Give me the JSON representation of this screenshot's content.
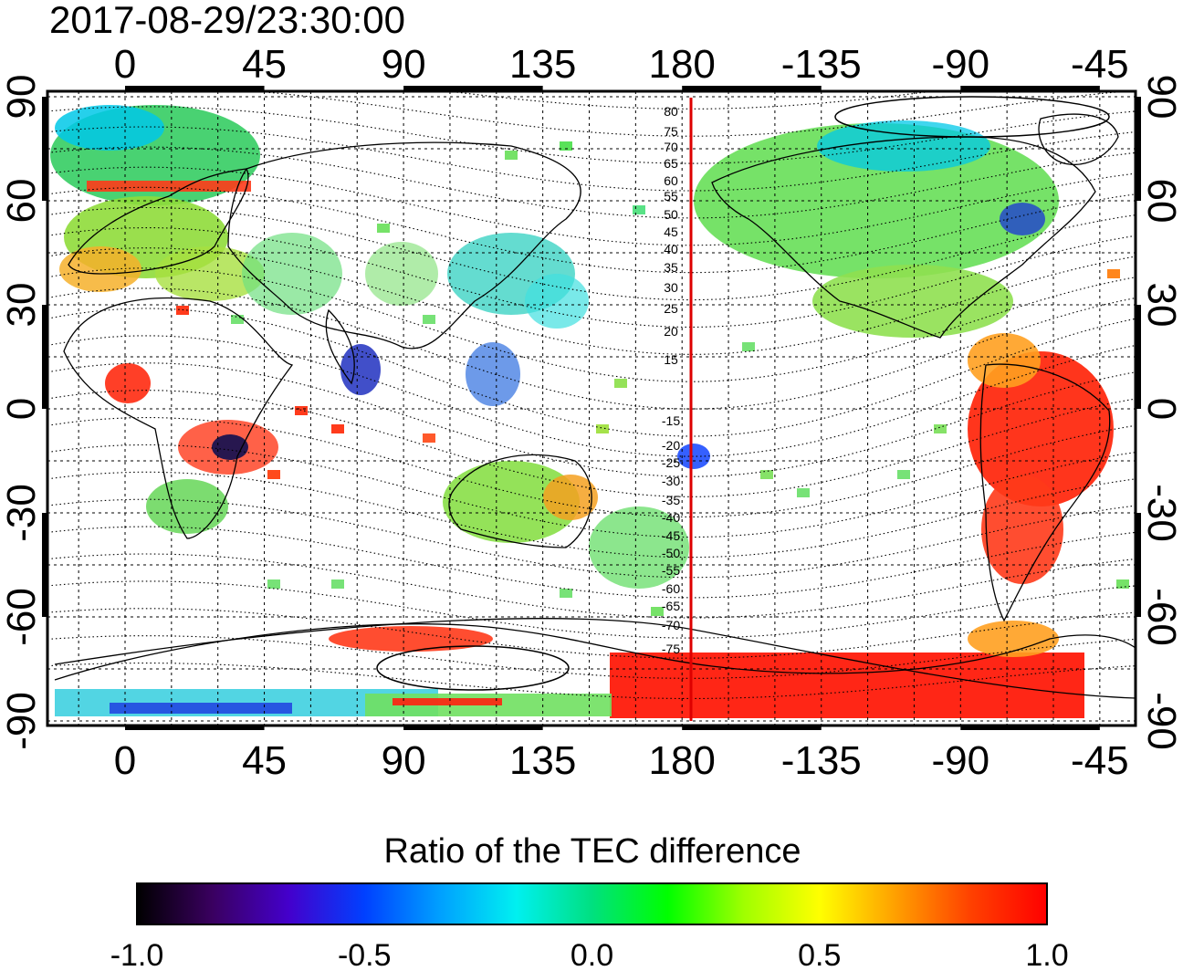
{
  "timestamp": "2017-08-29/23:30:00",
  "colorbar": {
    "title": "Ratio of the TEC difference",
    "ticks": [
      "-1.0",
      "-0.5",
      "0.0",
      "0.5",
      "1.0"
    ],
    "stops": [
      "#000000",
      "#3a0060",
      "#4400cc",
      "#0040ff",
      "#00a0ff",
      "#00f0f0",
      "#00e080",
      "#00ff00",
      "#a0ff00",
      "#ffff00",
      "#ffa000",
      "#ff4000",
      "#ff0000"
    ]
  },
  "map": {
    "top_lon_ticks": [
      "0",
      "45",
      "90",
      "135",
      "180",
      "-135",
      "-90",
      "-45"
    ],
    "bottom_lon_ticks": [
      "0",
      "45",
      "90",
      "135",
      "180",
      "-135",
      "-90",
      "-45"
    ],
    "left_lat_ticks": [
      "90",
      "60",
      "30",
      "0",
      "-30",
      "-60",
      "-90"
    ],
    "right_lat_ticks": [
      "90",
      "60",
      "30",
      "0",
      "-30",
      "-60",
      "-90"
    ],
    "north_conjugate_labels": [
      "80",
      "75",
      "70",
      "65",
      "60",
      "55",
      "50",
      "45",
      "40",
      "35",
      "30",
      "25",
      "20",
      "15"
    ],
    "south_conjugate_labels": [
      "-15",
      "-20",
      "-25",
      "-30",
      "-35",
      "-40",
      "-45",
      "-50",
      "-55",
      "-60",
      "-65",
      "-70",
      "-75"
    ],
    "meridian_color": "#dd0000"
  }
}
